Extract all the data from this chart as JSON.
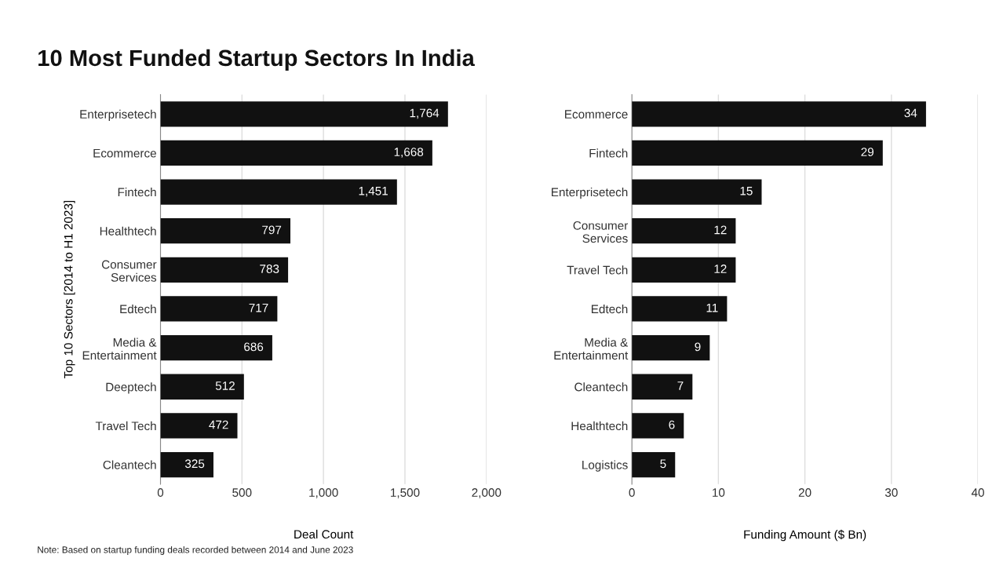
{
  "chart_data": [
    {
      "type": "bar",
      "orientation": "horizontal",
      "title": "10 Most Funded Startup Sectors In India",
      "ylabel": "Top 10 Sectors [2014 to H1 2023]",
      "xlabel": "Deal Count",
      "categories": [
        "Enterprisetech",
        "Ecommerce",
        "Fintech",
        "Healthtech",
        "Consumer\nServices",
        "Edtech",
        "Media &\nEntertainment",
        "Deeptech",
        "Travel Tech",
        "Cleantech"
      ],
      "values": [
        1764,
        1668,
        1451,
        797,
        783,
        717,
        686,
        512,
        472,
        325
      ],
      "value_labels": [
        "1,764",
        "1,668",
        "1,451",
        "797",
        "783",
        "717",
        "686",
        "512",
        "472",
        "325"
      ],
      "color": "#111111",
      "xlim": [
        0,
        2000
      ],
      "xticks": [
        0,
        500,
        {
          "value": 1000,
          "label": "1,000"
        },
        {
          "value": 1500,
          "label": "1,500"
        },
        {
          "value": 2000,
          "label": "2,000"
        }
      ],
      "grid": "x",
      "annotations": [
        "Note: Based on startup funding deals recorded between 2014 and June 2023"
      ]
    },
    {
      "type": "bar",
      "orientation": "horizontal",
      "xlabel": "Funding Amount ($ Bn)",
      "categories": [
        "Ecommerce",
        "Fintech",
        "Enterprisetech",
        "Consumer\nServices",
        "Travel Tech",
        "Edtech",
        "Media &\nEntertainment",
        "Cleantech",
        "Healthtech",
        "Logistics"
      ],
      "values": [
        34,
        29,
        15,
        12,
        12,
        11,
        9,
        7,
        6,
        5
      ],
      "data_labels": true,
      "color": "#111111",
      "xlim": [
        0,
        40
      ],
      "xticks": [
        0,
        10,
        20,
        30,
        40
      ],
      "grid": "x"
    }
  ]
}
